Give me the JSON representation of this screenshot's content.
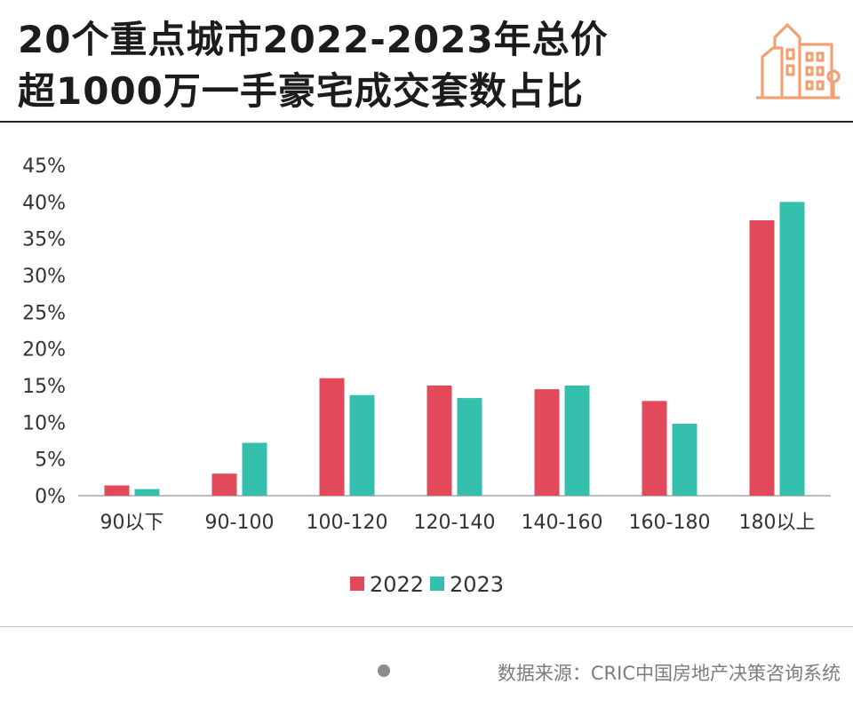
{
  "title_line1": "20个重点城市2022-2023年总价",
  "title_line2": "超1000万一手豪宅成交套数占比",
  "source": "数据来源：CRIC中国房地产决策咨询系统",
  "colors": {
    "series_2022": "#e24a5c",
    "series_2023": "#35c0ae",
    "accent": "#f0a274",
    "axis": "#bdbdbd"
  },
  "icons": [
    "building-icon",
    "bullet-dot-icon"
  ],
  "chart_data": {
    "type": "bar",
    "title": "20个重点城市2022-2023年总价超1000万一手豪宅成交套数占比",
    "xlabel": "",
    "ylabel": "",
    "categories": [
      "90以下",
      "90-100",
      "100-120",
      "120-140",
      "140-160",
      "160-180",
      "180以上"
    ],
    "series": [
      {
        "name": "2022",
        "color": "#e24a5c",
        "values": [
          1.4,
          3.0,
          16.0,
          15.0,
          14.5,
          12.9,
          37.5
        ]
      },
      {
        "name": "2023",
        "color": "#35c0ae",
        "values": [
          0.9,
          7.2,
          13.7,
          13.3,
          15.0,
          9.8,
          40.0
        ]
      }
    ],
    "ylim": [
      0,
      45
    ],
    "yticks": [
      0,
      5,
      10,
      15,
      20,
      25,
      30,
      35,
      40,
      45
    ],
    "ytick_labels": [
      "0%",
      "5%",
      "10%",
      "15%",
      "20%",
      "25%",
      "30%",
      "35%",
      "40%",
      "45%"
    ],
    "legend_position": "bottom-center",
    "grid": false
  }
}
